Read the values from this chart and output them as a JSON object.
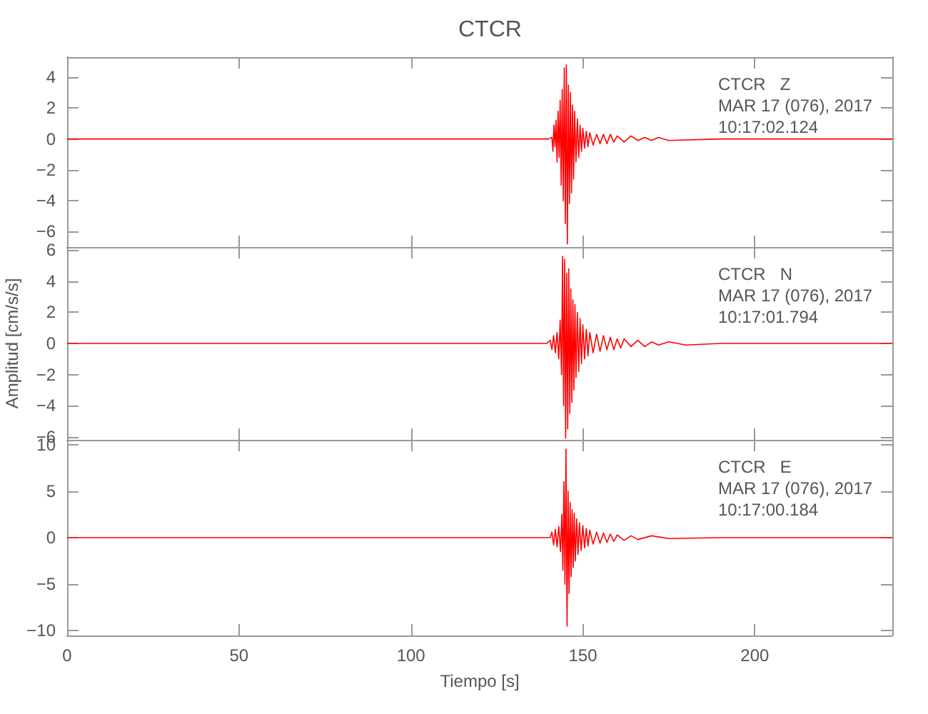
{
  "chart_data": [
    {
      "type": "line",
      "title": "CTCR",
      "annotations": [
        "CTCR   Z",
        "MAR 17 (076), 2017",
        "10:17:02.124"
      ],
      "xlim": [
        0,
        240
      ],
      "xticks": [
        0,
        50,
        100,
        150,
        200
      ],
      "ylim": [
        -7,
        5.3
      ],
      "yticks": [
        -6,
        -4,
        -2,
        0,
        2,
        4
      ],
      "tick_labels": "y",
      "grid": false,
      "marker": "none",
      "line_style": "solid",
      "series": [
        {
          "color": "#ff0000",
          "x": [
            0,
            140,
            141,
            141.3,
            141.6,
            141.9,
            142.2,
            142.5,
            142.8,
            143.1,
            143.4,
            143.7,
            144,
            144.3,
            144.6,
            144.9,
            145.2,
            145.5,
            145.8,
            146.1,
            146.4,
            146.7,
            147,
            147.3,
            147.6,
            148,
            148.4,
            148.8,
            149.2,
            149.6,
            150,
            150.5,
            151,
            151.5,
            152,
            153,
            154,
            155,
            156,
            157,
            158,
            159,
            160,
            162,
            164,
            166,
            168,
            170,
            172,
            175,
            190,
            240
          ],
          "values": [
            0,
            0,
            0.1,
            -0.8,
            0.9,
            -0.5,
            1.2,
            -1.5,
            1.8,
            -1.2,
            2.5,
            -3,
            3.2,
            -4,
            4.6,
            -5.5,
            4.8,
            -6.8,
            3.5,
            -4.2,
            3,
            -3.5,
            2.2,
            -2.6,
            1.8,
            -1.5,
            1.3,
            -1.2,
            0.9,
            -0.8,
            0.7,
            -0.6,
            0.5,
            -0.5,
            0.4,
            -0.4,
            0.3,
            -0.3,
            0.3,
            -0.3,
            0.3,
            -0.2,
            0.2,
            -0.2,
            0.2,
            -0.1,
            0.1,
            -0.1,
            0.1,
            -0.1,
            0,
            0
          ]
        }
      ]
    },
    {
      "type": "line",
      "ylabel": "Amplitud [cm/s/s]",
      "annotations": [
        "CTCR   N",
        "MAR 17 (076), 2017",
        "10:17:01.794"
      ],
      "xlim": [
        0,
        240
      ],
      "xticks": [
        0,
        50,
        100,
        150,
        200
      ],
      "ylim": [
        -6.2,
        6.2
      ],
      "yticks": [
        -6,
        -4,
        -2,
        0,
        2,
        4,
        6
      ],
      "tick_labels": "y",
      "grid": false,
      "marker": "none",
      "line_style": "solid",
      "series": [
        {
          "color": "#ff0000",
          "x": [
            0,
            139.5,
            140.5,
            141,
            141.5,
            142,
            142.5,
            143,
            143.4,
            143.8,
            144.1,
            144.4,
            144.7,
            145,
            145.3,
            145.6,
            145.9,
            146.2,
            146.5,
            146.8,
            147.1,
            147.4,
            147.7,
            148,
            148.4,
            148.8,
            149.2,
            149.6,
            150,
            150.5,
            151,
            151.5,
            152,
            153,
            154,
            155,
            156,
            157,
            158,
            159,
            160,
            161,
            162,
            164,
            166,
            168,
            170,
            172,
            175,
            180,
            190,
            240
          ],
          "values": [
            0,
            0,
            0.2,
            -0.4,
            0.5,
            -0.6,
            0.7,
            -1,
            1.5,
            -2,
            5.6,
            -4,
            5.4,
            -6.1,
            4.5,
            -5.5,
            4.8,
            -4.5,
            3.5,
            -3.8,
            2.8,
            -3,
            2.5,
            -2.2,
            2,
            -1.8,
            1.6,
            -1.3,
            1.2,
            -1,
            0.9,
            -0.8,
            0.7,
            -0.6,
            0.6,
            -0.5,
            0.5,
            -0.4,
            0.4,
            -0.4,
            0.3,
            -0.3,
            0.3,
            -0.2,
            0.2,
            -0.2,
            0.1,
            -0.1,
            0.1,
            -0.1,
            0,
            0
          ]
        }
      ]
    },
    {
      "type": "line",
      "xlabel": "Tiempo [s]",
      "annotations": [
        "CTCR   E",
        "MAR 17 (076), 2017",
        "10:17:00.184"
      ],
      "xlim": [
        0,
        240
      ],
      "xticks": [
        0,
        50,
        100,
        150,
        200
      ],
      "ylim": [
        -10.5,
        10.5
      ],
      "yticks": [
        -10,
        -5,
        0,
        5,
        10
      ],
      "grid": false,
      "marker": "none",
      "line_style": "solid",
      "series": [
        {
          "color": "#ff0000",
          "x": [
            0,
            140.5,
            141,
            141.5,
            142,
            142.5,
            143,
            143.5,
            143.9,
            144.2,
            144.5,
            144.8,
            145.1,
            145.4,
            145.7,
            146,
            146.3,
            146.6,
            146.9,
            147.2,
            147.5,
            147.8,
            148.2,
            148.6,
            149,
            149.5,
            150,
            150.5,
            151,
            151.5,
            152,
            153,
            154,
            155,
            156,
            157,
            158,
            159,
            160,
            162,
            164,
            166,
            170,
            175,
            190,
            240
          ],
          "values": [
            0,
            0,
            0.6,
            -0.8,
            0.9,
            -1,
            1.2,
            -1.5,
            2.5,
            -3.5,
            6,
            -5,
            9.5,
            -9.5,
            5,
            -6,
            3.8,
            -4.2,
            3,
            -3.2,
            2.6,
            -2.5,
            2,
            -1.8,
            1.6,
            -1.4,
            1.3,
            -1.1,
            1,
            -0.9,
            0.8,
            -0.7,
            0.6,
            -0.6,
            0.5,
            -0.5,
            0.4,
            -0.4,
            0.3,
            -0.3,
            0.2,
            -0.2,
            0.2,
            -0.1,
            0,
            0
          ]
        }
      ]
    }
  ]
}
